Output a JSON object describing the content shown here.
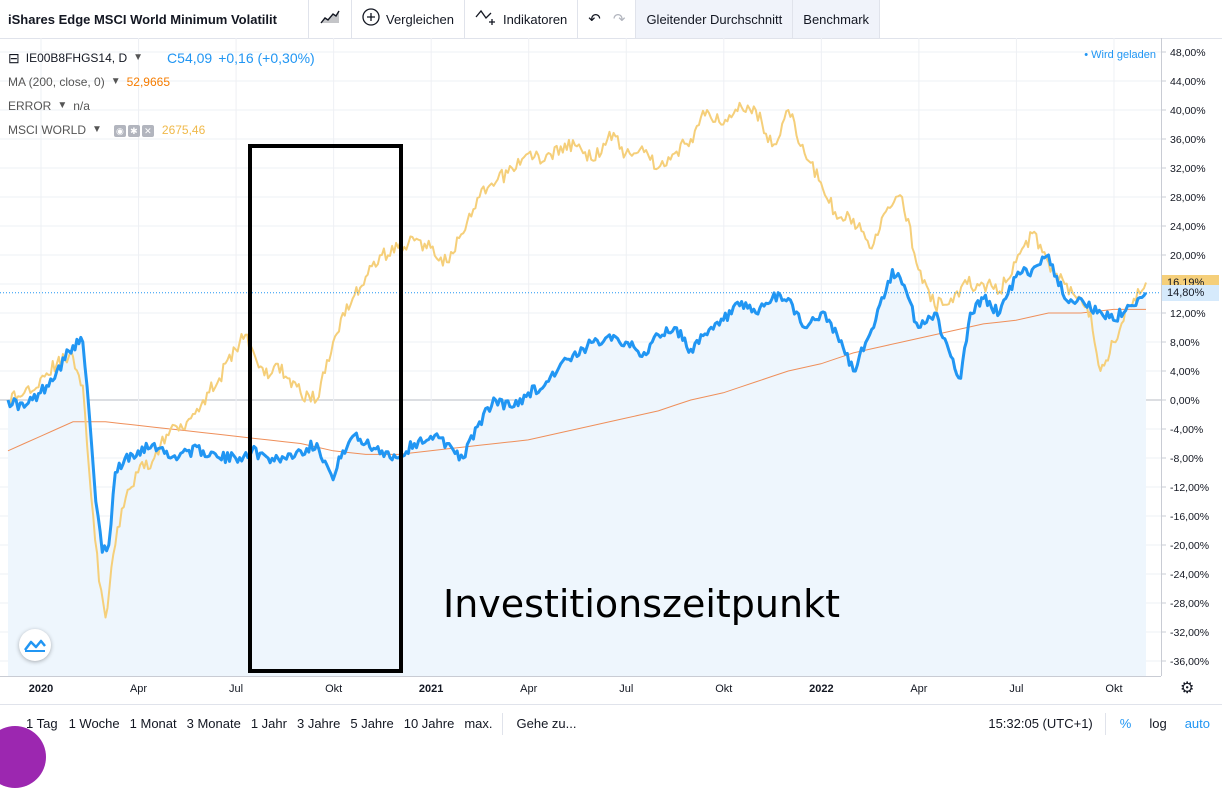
{
  "toolbar": {
    "title": "iShares Edge MSCI World Minimum Volatilit",
    "compare_label": "Vergleichen",
    "indicators_label": "Indikatoren",
    "moving_average_label": "Gleitender Durchschnitt",
    "benchmark_label": "Benchmark"
  },
  "legend": {
    "symbol": "IE00B8FHGS14, D",
    "price_prefix": "C",
    "price": "54,09",
    "change": "+0,16 (+0,30%)",
    "ma_label": "MA (200, close, 0)",
    "ma_value": "52,9665",
    "error_label": "ERROR",
    "error_value": "n/a",
    "compare_label": "MSCI WORLD",
    "compare_value": "2675,46"
  },
  "status": {
    "loading": "• Wird geladen"
  },
  "annotation": "Investitionszeitpunkt",
  "bottom": {
    "ranges": [
      "1 Tag",
      "1 Woche",
      "1 Monat",
      "3 Monate",
      "1 Jahr",
      "3 Jahre",
      "5 Jahre",
      "10 Jahre",
      "max."
    ],
    "goto": "Gehe zu...",
    "time": "15:32:05 (UTC+1)",
    "percent": "%",
    "log": "log",
    "auto": "auto"
  },
  "colors": {
    "main": "#2196f3",
    "msci": "#f5cf7a",
    "ma": "#ef8f5a",
    "fill": "#eef6fd"
  },
  "chart_data": {
    "type": "line",
    "ylim": [
      -38,
      49
    ],
    "y_ticks": [
      "48,00%",
      "44,00%",
      "40,00%",
      "36,00%",
      "32,00%",
      "28,00%",
      "24,00%",
      "20,00%",
      "16,00%",
      "12,00%",
      "8,00%",
      "4,00%",
      "0,00%",
      "-4,00%",
      "-8,00%",
      "-12,00%",
      "-16,00%",
      "-20,00%",
      "-24,00%",
      "-28,00%",
      "-32,00%",
      "-36,00%"
    ],
    "y_tick_values": [
      48,
      44,
      40,
      36,
      32,
      28,
      24,
      20,
      16,
      12,
      8,
      4,
      0,
      -4,
      -8,
      -12,
      -16,
      -20,
      -24,
      -28,
      -32,
      -36
    ],
    "x_ticks": [
      {
        "label": "2020",
        "t": 0,
        "bold": true
      },
      {
        "label": "Apr",
        "t": 3,
        "bold": false
      },
      {
        "label": "Jul",
        "t": 6,
        "bold": false
      },
      {
        "label": "Okt",
        "t": 9,
        "bold": false
      },
      {
        "label": "2021",
        "t": 12,
        "bold": true
      },
      {
        "label": "Apr",
        "t": 15,
        "bold": false
      },
      {
        "label": "Jul",
        "t": 18,
        "bold": false
      },
      {
        "label": "Okt",
        "t": 21,
        "bold": false
      },
      {
        "label": "2022",
        "t": 24,
        "bold": true
      },
      {
        "label": "Apr",
        "t": 27,
        "bold": false
      },
      {
        "label": "Jul",
        "t": 30,
        "bold": false
      },
      {
        "label": "Okt",
        "t": 33,
        "bold": false
      }
    ],
    "last_labels": [
      {
        "text": "16,19%",
        "value": 16.19,
        "bg": "#f5cf7a"
      },
      {
        "text": "14,80%",
        "value": 14.8,
        "bg": "#d6eafc"
      }
    ],
    "series": [
      {
        "name": "IE00B8FHGS14",
        "color": "#2196f3",
        "width": 3,
        "t": [
          0,
          0.5,
          1,
          1.5,
          2,
          2.3,
          2.5,
          2.7,
          2.9,
          3.1,
          3.3,
          3.6,
          4,
          4.5,
          5,
          5.5,
          6,
          6.5,
          7,
          7.5,
          8,
          8.5,
          9,
          9.5,
          10,
          10.3,
          10.6,
          11,
          11.5,
          12,
          12.5,
          13,
          13.5,
          14,
          14.5,
          15,
          15.5,
          16,
          16.5,
          17,
          17.5,
          18,
          18.5,
          19,
          19.5,
          20,
          20.5,
          21,
          21.5,
          22,
          22.5,
          23,
          23.5,
          24,
          24.5,
          25,
          25.5,
          26,
          26.5,
          27,
          27.2,
          27.5,
          28,
          28.5,
          29,
          29.3,
          29.6,
          30,
          30.5,
          31,
          31.5,
          32,
          32.5,
          33,
          33.5,
          34,
          34.5,
          35
        ],
        "values": [
          0,
          -1,
          1,
          4,
          7.5,
          8,
          -2,
          -14,
          -21,
          -20,
          -10,
          -8,
          -7,
          -6,
          -8,
          -7,
          -7,
          -8,
          -8,
          -7,
          -8,
          -8,
          -7,
          -6,
          -11,
          -7,
          -5,
          -6,
          -7,
          -8,
          -6,
          -5,
          -6,
          -8,
          -3,
          0,
          -1,
          1,
          2,
          5,
          6,
          8,
          9,
          8,
          6,
          9,
          10,
          7,
          9,
          11,
          13,
          12,
          14,
          14,
          10,
          12,
          9,
          4,
          9,
          15,
          18,
          16,
          10,
          12,
          6,
          3,
          12,
          14,
          12,
          17,
          18,
          20,
          14,
          14,
          12,
          11,
          13,
          14.8
        ]
      },
      {
        "name": "MSCI WORLD",
        "color": "#f5cf7a",
        "width": 2,
        "t": [
          0,
          0.5,
          1,
          1.5,
          2,
          2.3,
          2.5,
          2.8,
          3,
          3.3,
          3.5,
          3.8,
          4,
          4.5,
          5,
          5.5,
          6,
          6.5,
          7,
          7.3,
          7.6,
          8,
          8.3,
          8.6,
          9,
          9.5,
          10,
          10.3,
          10.6,
          11,
          11.5,
          12,
          12.5,
          13,
          13.5,
          14,
          14.5,
          15,
          15.5,
          16,
          16.5,
          17,
          17.5,
          18,
          18.5,
          19,
          19.5,
          20,
          20.5,
          21,
          21.5,
          22,
          22.5,
          23,
          23.5,
          24,
          24.5,
          25,
          25.5,
          26,
          26.5,
          27,
          27.5,
          28,
          28.5,
          29,
          29.5,
          30,
          30.5,
          31,
          31.5,
          32,
          32.5,
          33,
          33.3,
          33.6,
          34,
          34.5,
          35
        ],
        "values": [
          0,
          1,
          3,
          5,
          6,
          2,
          -10,
          -25,
          -30,
          -20,
          -15,
          -12,
          -10,
          -8,
          -4,
          -3,
          0,
          3,
          7,
          9,
          6,
          3,
          5,
          3,
          1,
          0,
          8,
          12,
          14,
          17,
          20,
          21,
          22,
          21,
          19,
          23,
          28,
          30,
          32,
          34,
          33,
          35,
          35,
          33,
          37,
          34,
          35,
          32,
          34,
          36,
          40,
          38,
          41,
          40,
          35,
          40,
          34,
          30,
          25,
          25,
          21,
          26,
          28,
          18,
          13,
          14,
          16,
          16,
          15,
          19,
          23,
          19,
          16,
          14,
          12,
          4,
          8,
          13,
          16.19
        ]
      },
      {
        "name": "MA (200, close, 0)",
        "color": "#ef8f5a",
        "width": 1,
        "t": [
          0,
          1,
          2,
          3,
          4,
          5,
          6,
          7,
          8,
          9,
          10,
          11,
          12,
          13,
          14,
          15,
          16,
          17,
          18,
          19,
          20,
          21,
          22,
          23,
          24,
          25,
          26,
          27,
          28,
          29,
          30,
          31,
          32,
          33,
          34,
          35
        ],
        "values": [
          -7,
          -5,
          -3,
          -3,
          -3.5,
          -4,
          -4.5,
          -5,
          -5.5,
          -6,
          -7,
          -7.5,
          -7.5,
          -7,
          -6.5,
          -6,
          -5.5,
          -4.5,
          -3.5,
          -2.5,
          -1.5,
          0,
          1,
          2.5,
          4,
          5,
          6.5,
          7.5,
          8.5,
          9.5,
          10.5,
          11,
          12,
          12,
          12.5,
          12.5
        ]
      }
    ]
  }
}
